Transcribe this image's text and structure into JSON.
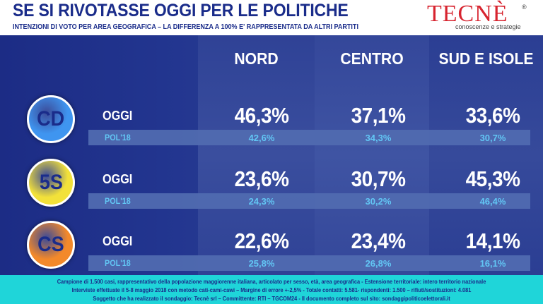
{
  "header": {
    "title": "SE SI RIVOTASSE OGGI PER LE POLITICHE",
    "subtitle": "INTENZIONI DI VOTO PER AREA GEOGRAFICA – LA DIFFERENZA A 100% E' RAPPRESENTATA DA ALTRI PARTITI"
  },
  "logo": {
    "name": "TECNÈ",
    "tagline": "conoscenze e strategie",
    "reg": "®"
  },
  "regions": [
    "NORD",
    "CENTRO",
    "SUD E ISOLE"
  ],
  "rows": [
    {
      "party": "CD",
      "color": "#3f95f0",
      "oggi_label": "OGGI",
      "pol_label": "POL'18",
      "oggi": [
        "46,3%",
        "37,1%",
        "33,6%"
      ],
      "pol": [
        "42,6%",
        "34,3%",
        "30,7%"
      ]
    },
    {
      "party": "5S",
      "color": "#f2e13a",
      "oggi_label": "OGGI",
      "pol_label": "POL'18",
      "oggi": [
        "23,6%",
        "30,7%",
        "45,3%"
      ],
      "pol": [
        "24,3%",
        "30,2%",
        "46,4%"
      ]
    },
    {
      "party": "CS",
      "color": "#f3892a",
      "oggi_label": "OGGI",
      "pol_label": "POL'18",
      "oggi": [
        "22,6%",
        "23,4%",
        "14,1%"
      ],
      "pol": [
        "25,8%",
        "26,8%",
        "16,1%"
      ]
    }
  ],
  "footer": {
    "line1": "Campione di 1.500 casi, rappresentativo della popolazione maggiorenne italiana, articolato per sesso, età, area geografica - Estensione territoriale: intero territorio nazionale",
    "line2": "Interviste effettuate il 5-8 maggio 2018 con metodo cati-cami-cawi – Margine di errore +-2,5% - Totale contatti: 5.581- rispondenti: 1.500 – rifiuti/sostituzioni: 4.081",
    "line3": "Soggetto che ha realizzato il sondaggio: Tecnè srl – Committente: RTI – TGCOM24 - Il documento completo sul sito: sondaggipoliticoelettorali.it"
  }
}
